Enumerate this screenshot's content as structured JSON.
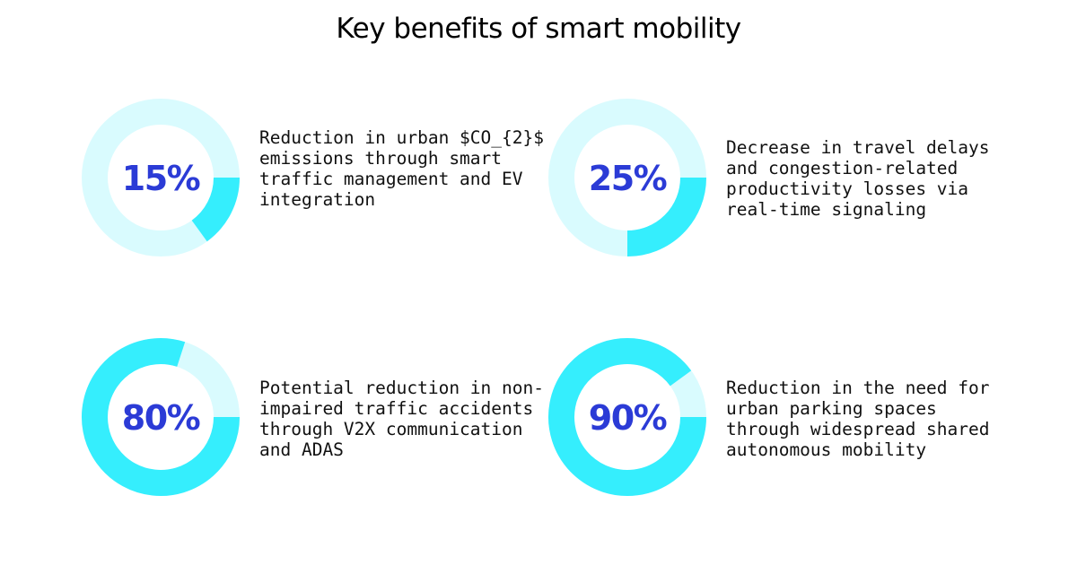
{
  "title": "Key benefits of smart mobility",
  "colors": {
    "track": "#d9fbfe",
    "fill": "#35eefd",
    "number": "#2b3bd6"
  },
  "chart_data": {
    "type": "pie",
    "title": "Key benefits of smart mobility",
    "items": [
      {
        "value": 15,
        "label": "15%",
        "description": "Reduction in urban $CO_{2}$ emissions through smart traffic management and EV integration"
      },
      {
        "value": 25,
        "label": "25%",
        "description": "Decrease in travel delays and congestion-related productivity losses via real-time signaling"
      },
      {
        "value": 80,
        "label": "80%",
        "description": "Potential reduction in non-impaired traffic accidents through V2X communication and ADAS"
      },
      {
        "value": 90,
        "label": "90%",
        "description": "Reduction in the need for urban parking spaces through widespread shared autonomous mobility"
      }
    ]
  }
}
